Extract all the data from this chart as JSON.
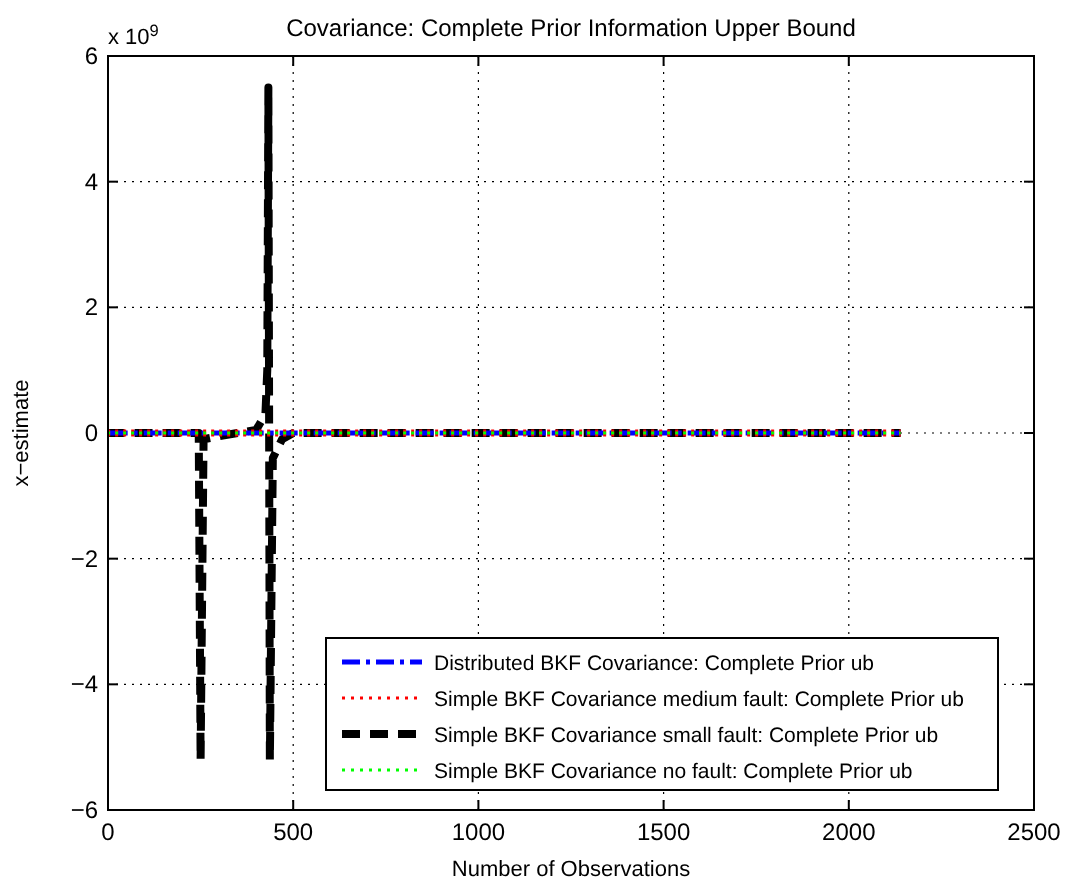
{
  "chart_data": {
    "type": "line",
    "title": "Covariance: Complete Prior Information Upper Bound",
    "xlabel": "Number of Observations",
    "ylabel": "x−estimate",
    "annotations": [
      "x 10$^{9}$"
    ],
    "xlim": [
      0,
      2500
    ],
    "xticks": [
      0,
      500,
      1000,
      1500,
      2000,
      2500
    ],
    "ylim": [
      -6,
      6
    ],
    "yticks": [
      -6,
      -4,
      -2,
      0,
      2,
      4,
      6
    ],
    "grid": true,
    "legend": "bottom right",
    "series": [
      {
        "name": "Distributed BKF Covariance: Complete Prior ub",
        "color": "#0000ff",
        "line_style": "dashdot",
        "x": [
          0,
          2140
        ],
        "values": [
          0,
          0
        ]
      },
      {
        "name": "Simple BKF Covariance medium fault: Complete Prior ub",
        "color": "#ff0000",
        "line_style": "dotted",
        "x": [
          0,
          2140
        ],
        "values": [
          0,
          0
        ]
      },
      {
        "name": "Simple BKF Covariance small fault: Complete Prior ub",
        "color": "#000000",
        "line_style": "dashed",
        "x": [
          0,
          245,
          250,
          258,
          300,
          400,
          425,
          430,
          433,
          437,
          445,
          470,
          500,
          2140
        ],
        "values": [
          0,
          0,
          -5.2,
          -0.1,
          -0.05,
          0.05,
          0.3,
          1,
          5.5,
          -5.2,
          -0.4,
          -0.1,
          0,
          0
        ]
      },
      {
        "name": "Simple BKF Covariance no fault: Complete Prior ub",
        "color": "#00ff00",
        "line_style": "dotted",
        "x": [
          0,
          2140
        ],
        "values": [
          0,
          0
        ]
      }
    ]
  }
}
